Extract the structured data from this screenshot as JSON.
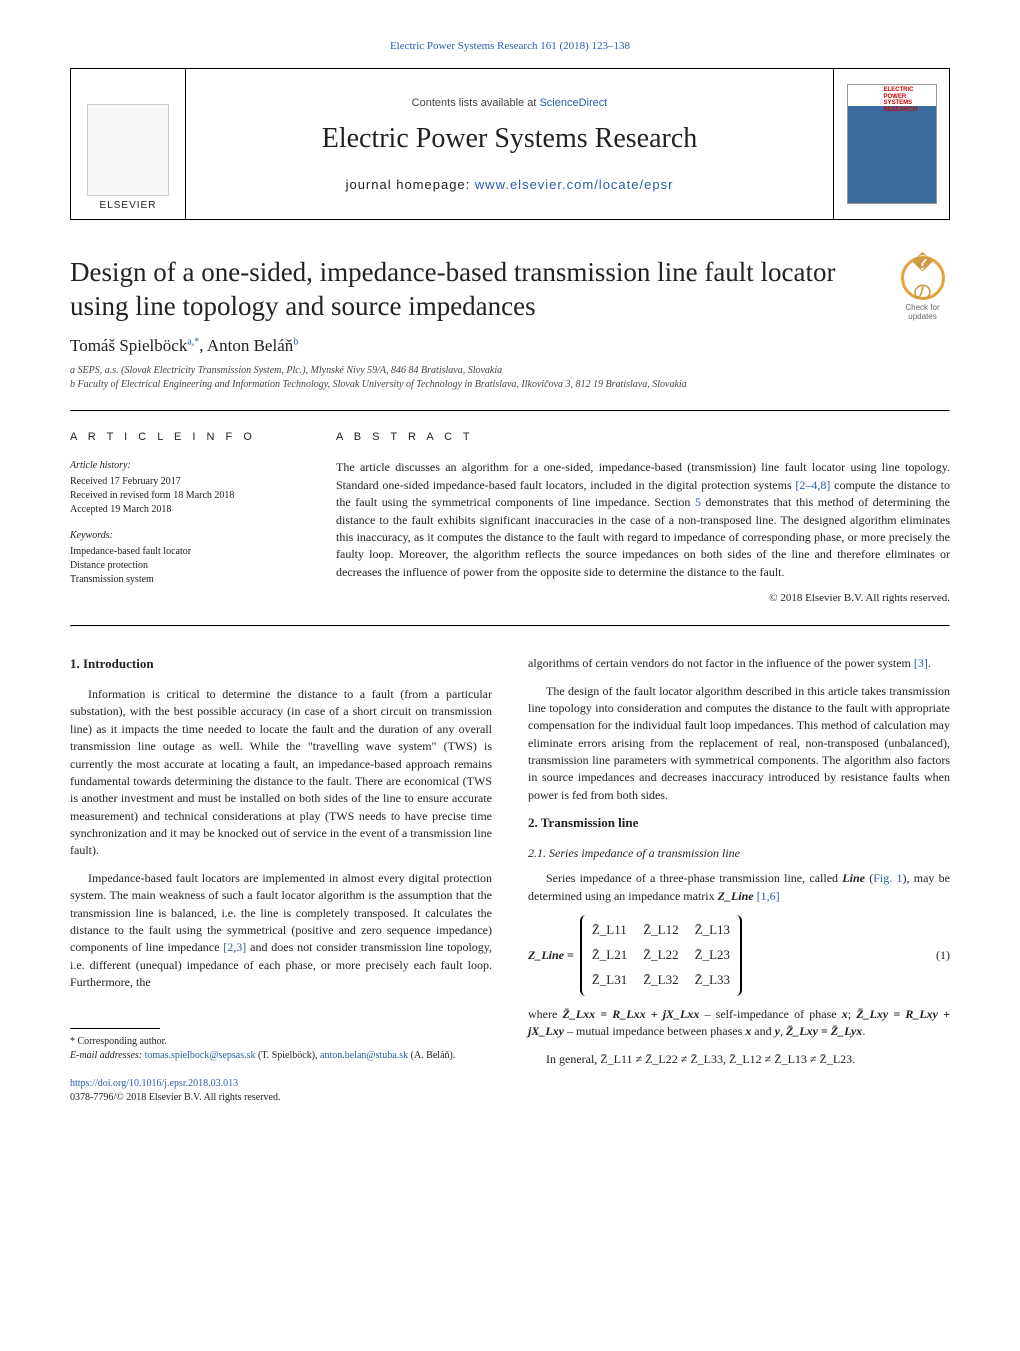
{
  "top_link": "Electric Power Systems Research 161 (2018) 123–138",
  "header": {
    "elsevier": "ELSEVIER",
    "contents_prefix": "Contents lists available at ",
    "contents_link": "ScienceDirect",
    "journal_title": "Electric Power Systems Research",
    "homepage_prefix": "journal homepage: ",
    "homepage_link": "www.elsevier.com/locate/epsr",
    "cover_label": "ELECTRIC POWER SYSTEMS RESEARCH"
  },
  "updates_badge": {
    "glyph": "�の",
    "text": "Check for updates"
  },
  "article": {
    "title": "Design of a one-sided, impedance-based transmission line fault locator using line topology and source impedances",
    "authors_html": "Tomáš Spielböck",
    "author_a_sup": "a,*",
    "author_b": ", Anton Beláň",
    "author_b_sup": "b",
    "affil_a": "a SEPS, a.s. (Slovak Electricity Transmission System, Plc.), Mlynské Nivy 59/A, 846 84 Bratislava, Slovakia",
    "affil_b": "b Faculty of Electrical Engineering and Information Technology, Slovak University of Technology in Bratislava, Ilkovičova 3, 812 19 Bratislava, Slovakia"
  },
  "info": {
    "head": "A R T I C L E   I N F O",
    "history_head": "Article history:",
    "received": "Received 17 February 2017",
    "revised": "Received in revised form 18 March 2018",
    "accepted": "Accepted 19 March 2018",
    "keywords_head": "Keywords:",
    "kw1": "Impedance-based fault locator",
    "kw2": "Distance protection",
    "kw3": "Transmission system"
  },
  "abstract": {
    "head": "A B S T R A C T",
    "text_1": "The article discusses an algorithm for a one-sided, impedance-based (transmission) line fault locator using line topology. Standard one-sided impedance-based fault locators, included in the digital protection systems ",
    "cite_1": "[2–4,8]",
    "text_2": " compute the distance to the fault using the symmetrical components of line impedance. Section ",
    "cite_2": "5",
    "text_3": " demonstrates that this method of determining the distance to the fault exhibits significant inaccuracies in the case of a non-transposed line. The designed algorithm eliminates this inaccuracy, as it computes the distance to the fault with regard to impedance of corresponding phase, or more precisely the faulty loop. Moreover, the algorithm reflects the source impedances on both sides of the line and therefore eliminates or decreases the influence of power from the opposite side to determine the distance to the fault.",
    "copyright": "© 2018 Elsevier B.V. All rights reserved."
  },
  "body": {
    "sec1_head": "1.  Introduction",
    "p1": "Information is critical to determine the distance to a fault (from a particular substation), with the best possible accuracy (in case of a short circuit on transmission line) as it impacts the time needed to locate the fault and the duration of any overall transmission line outage as well. While the \"travelling wave system\" (TWS) is currently the most accurate at locating a fault, an impedance-based approach remains fundamental towards determining the distance to the fault. There are economical (TWS is another investment and must be installed on both sides of the line to ensure accurate measurement) and technical considerations at play (TWS needs to have precise time synchronization and it may be knocked out of service in the event of a transmission line fault).",
    "p2_a": "Impedance-based fault locators are implemented in almost every digital protection system. The main weakness of such a fault locator algorithm is the assumption that the transmission line is balanced, i.e. the line is completely transposed. It calculates the distance to the fault using the symmetrical (positive and zero sequence impedance) components of line impedance ",
    "p2_cite": "[2,3]",
    "p2_b": " and does not consider transmission line topology, i.e. different (unequal) impedance of each phase, or more precisely each fault loop. Furthermore, the",
    "p3_a": "algorithms of certain vendors do not factor in the influence of the power system ",
    "p3_cite": "[3]",
    "p3_b": ".",
    "p4": "The design of the fault locator algorithm described in this article takes transmission line topology into consideration and computes the distance to the fault with appropriate compensation for the individual fault loop impedances. This method of calculation may eliminate errors arising from the replacement of real, non-transposed (unbalanced), transmission line parameters with symmetrical components. The algorithm also factors in source impedances and decreases inaccuracy introduced by resistance faults when power is fed from both sides.",
    "sec2_head": "2.  Transmission line",
    "sec21_head": "2.1.  Series impedance of a transmission line",
    "p5_a": "Series impedance of a three-phase transmission line, called ",
    "p5_b": "Line",
    "p5_c": " (",
    "p5_fig": "Fig. 1",
    "p5_d": "), may be determined using an impedance matrix ",
    "p5_e": "Z_Line",
    "p5_cite": " [1,6]",
    "eq": {
      "lhs": "Z_Line =",
      "m11": "Z̄_L11",
      "m12": "Z̄_L12",
      "m13": "Z̄_L13",
      "m21": "Z̄_L21",
      "m22": "Z̄_L22",
      "m23": "Z̄_L23",
      "m31": "Z̄_L31",
      "m32": "Z̄_L32",
      "m33": "Z̄_L33",
      "num": "(1)"
    },
    "where_a": "where ",
    "where_b": "Z̄_Lxx = R_Lxx + jX_Lxx",
    "where_c": " – self-impedance of phase ",
    "where_d": "x",
    "where_e": "; ",
    "where_f": "Z̄_Lxy = R_Lxy + jX_Lxy",
    "where_g": " – mutual impedance between phases ",
    "where_h": "x",
    "where_i": " and ",
    "where_j": "y",
    "where_k": ", ",
    "where_l": "Z̄_Lxy = Z̄_Lyx",
    "where_m": ".",
    "general": "In general, Z̄_L11 ≠ Z̄_L22 ≠ Z̄_L33, Z̄_L12 ≠ Z̄_L13 ≠ Z̄_L23."
  },
  "footnotes": {
    "corr": "* Corresponding author.",
    "email_label": "E-mail addresses: ",
    "email1": "tomas.spielbock@sepsas.sk",
    "email1_who": " (T. Spielböck), ",
    "email2": "anton.belan@stuba.sk",
    "email2_who": " (A. Beláň)."
  },
  "bottom": {
    "doi": "https://doi.org/10.1016/j.epsr.2018.03.013",
    "issn": "0378-7796/© 2018 Elsevier B.V. All rights reserved."
  },
  "colors": {
    "link": "#2a5caa",
    "text": "#222222",
    "badge_border": "#e6a23c"
  }
}
